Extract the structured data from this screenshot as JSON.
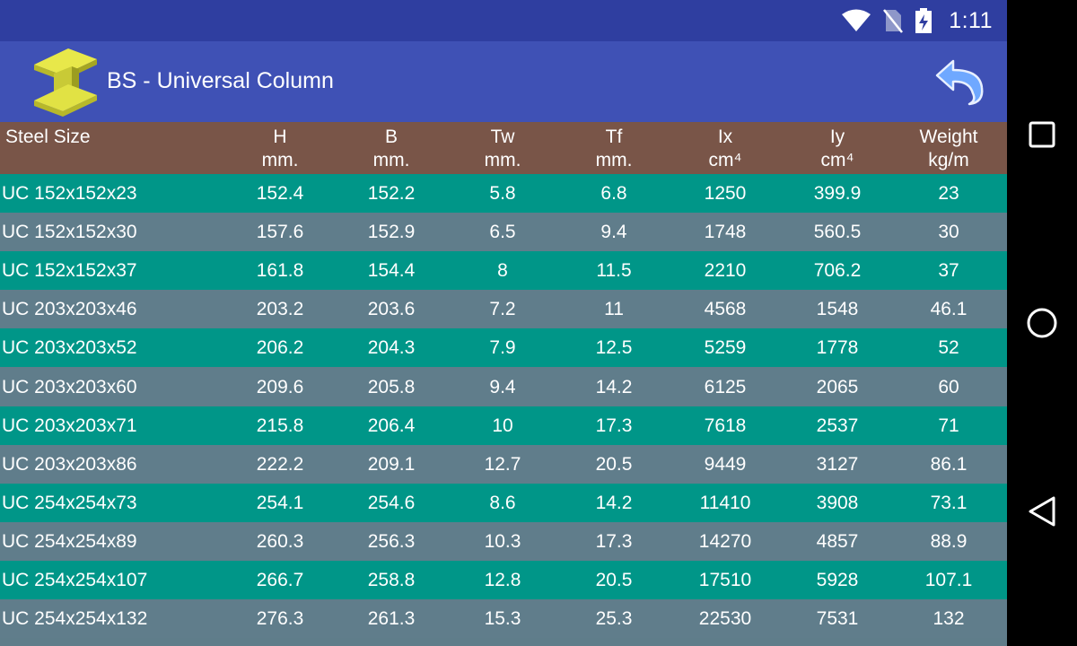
{
  "status_bar": {
    "time": "1:11",
    "icons": [
      "wifi-icon",
      "no-sim-icon",
      "battery-charging-icon"
    ]
  },
  "app_bar": {
    "title": "BS - Universal Column",
    "logo_icon": "i-beam-icon",
    "back_icon": "undo-arrow-icon"
  },
  "table": {
    "headers": [
      {
        "line1": "Steel Size",
        "line2": ""
      },
      {
        "line1": "H",
        "line2": "mm."
      },
      {
        "line1": "B",
        "line2": "mm."
      },
      {
        "line1": "Tw",
        "line2": "mm."
      },
      {
        "line1": "Tf",
        "line2": "mm."
      },
      {
        "line1": "Ix",
        "line2": "cm⁴"
      },
      {
        "line1": "Iy",
        "line2": "cm⁴"
      },
      {
        "line1": "Weight",
        "line2": "kg/m"
      }
    ],
    "rows": [
      [
        "UC 152x152x23",
        "152.4",
        "152.2",
        "5.8",
        "6.8",
        "1250",
        "399.9",
        "23"
      ],
      [
        "UC 152x152x30",
        "157.6",
        "152.9",
        "6.5",
        "9.4",
        "1748",
        "560.5",
        "30"
      ],
      [
        "UC 152x152x37",
        "161.8",
        "154.4",
        "8",
        "11.5",
        "2210",
        "706.2",
        "37"
      ],
      [
        "UC 203x203x46",
        "203.2",
        "203.6",
        "7.2",
        "11",
        "4568",
        "1548",
        "46.1"
      ],
      [
        "UC 203x203x52",
        "206.2",
        "204.3",
        "7.9",
        "12.5",
        "5259",
        "1778",
        "52"
      ],
      [
        "UC 203x203x60",
        "209.6",
        "205.8",
        "9.4",
        "14.2",
        "6125",
        "2065",
        "60"
      ],
      [
        "UC 203x203x71",
        "215.8",
        "206.4",
        "10",
        "17.3",
        "7618",
        "2537",
        "71"
      ],
      [
        "UC 203x203x86",
        "222.2",
        "209.1",
        "12.7",
        "20.5",
        "9449",
        "3127",
        "86.1"
      ],
      [
        "UC 254x254x73",
        "254.1",
        "254.6",
        "8.6",
        "14.2",
        "11410",
        "3908",
        "73.1"
      ],
      [
        "UC 254x254x89",
        "260.3",
        "256.3",
        "10.3",
        "17.3",
        "14270",
        "4857",
        "88.9"
      ],
      [
        "UC 254x254x107",
        "266.7",
        "258.8",
        "12.8",
        "20.5",
        "17510",
        "5928",
        "107.1"
      ],
      [
        "UC 254x254x132",
        "276.3",
        "261.3",
        "15.3",
        "25.3",
        "22530",
        "7531",
        "132"
      ]
    ]
  },
  "colors": {
    "status_bar": "#2f3ea0",
    "app_bar": "#3f51b5",
    "header": "#795548",
    "row_even": "#009688",
    "row_odd": "#607d8b"
  },
  "nav_bar": {
    "icons": [
      "recents-square-icon",
      "home-circle-icon",
      "back-triangle-icon"
    ]
  }
}
